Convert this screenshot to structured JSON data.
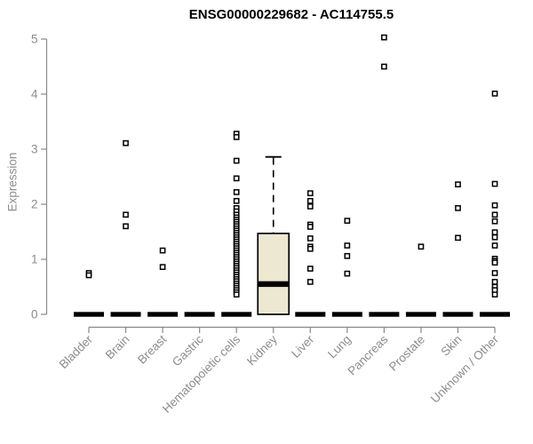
{
  "chart_data": {
    "type": "boxplot",
    "title": "ENSG00000229682 - AC114755.5",
    "ylabel": "Expression",
    "xlabel": "",
    "ylim": [
      0,
      5
    ],
    "yticks": [
      "0",
      "1",
      "2",
      "3",
      "4",
      "5"
    ],
    "grid": false,
    "legend": "none",
    "categories": [
      "Bladder",
      "Brain",
      "Breast",
      "Gastric",
      "Hematopoietic cells",
      "Kidney",
      "Liver",
      "Lung",
      "Pancreas",
      "Prostate",
      "Skin",
      "Unknown / Other"
    ],
    "boxes": [
      {
        "category": "Bladder",
        "q1": 0,
        "median": 0,
        "q3": 0,
        "whisker_low": 0,
        "whisker_high": 0,
        "outliers": [
          0.75,
          0.71
        ]
      },
      {
        "category": "Brain",
        "q1": 0,
        "median": 0,
        "q3": 0,
        "whisker_low": 0,
        "whisker_high": 0,
        "outliers": [
          3.11,
          1.81,
          1.6
        ]
      },
      {
        "category": "Breast",
        "q1": 0,
        "median": 0,
        "q3": 0,
        "whisker_low": 0,
        "whisker_high": 0,
        "outliers": [
          1.16,
          0.86
        ]
      },
      {
        "category": "Gastric",
        "q1": 0,
        "median": 0,
        "q3": 0,
        "whisker_low": 0,
        "whisker_high": 0,
        "outliers": []
      },
      {
        "category": "Hematopoietic cells",
        "q1": 0,
        "median": 0,
        "q3": 0,
        "whisker_low": 0,
        "whisker_high": 0,
        "outliers": [
          3.28,
          3.22,
          2.79,
          2.47,
          2.22,
          2.06,
          1.93,
          1.87,
          1.81,
          1.76,
          1.72,
          1.68,
          1.64,
          1.6,
          1.56,
          1.52,
          1.48,
          1.44,
          1.4,
          1.36,
          1.32,
          1.28,
          1.24,
          1.2,
          1.16,
          1.12,
          1.08,
          1.04,
          1.0,
          0.96,
          0.92,
          0.88,
          0.84,
          0.8,
          0.76,
          0.72,
          0.68,
          0.64,
          0.6,
          0.56,
          0.52,
          0.48,
          0.44,
          0.4,
          0.36
        ],
        "note": "dense outlier column"
      },
      {
        "category": "Kidney",
        "q1": 0,
        "median": 0.55,
        "q3": 1.47,
        "whisker_low": 0,
        "whisker_high": 2.86,
        "outliers": []
      },
      {
        "category": "Liver",
        "q1": 0,
        "median": 0,
        "q3": 0,
        "whisker_low": 0,
        "whisker_high": 0,
        "outliers": [
          2.2,
          2.06,
          1.96,
          1.63,
          1.59,
          1.38,
          1.23,
          1.19,
          0.83,
          0.59
        ]
      },
      {
        "category": "Lung",
        "q1": 0,
        "median": 0,
        "q3": 0,
        "whisker_low": 0,
        "whisker_high": 0,
        "outliers": [
          1.7,
          1.25,
          1.06,
          0.74
        ]
      },
      {
        "category": "Pancreas",
        "q1": 0,
        "median": 0,
        "q3": 0,
        "whisker_low": 0,
        "whisker_high": 0,
        "outliers": [
          5.03,
          4.5
        ]
      },
      {
        "category": "Prostate",
        "q1": 0,
        "median": 0,
        "q3": 0,
        "whisker_low": 0,
        "whisker_high": 0,
        "outliers": [
          1.23
        ]
      },
      {
        "category": "Skin",
        "q1": 0,
        "median": 0,
        "q3": 0,
        "whisker_low": 0,
        "whisker_high": 0,
        "outliers": [
          2.36,
          1.93,
          1.39
        ]
      },
      {
        "category": "Unknown / Other",
        "q1": 0,
        "median": 0,
        "q3": 0,
        "whisker_low": 0,
        "whisker_high": 0,
        "outliers": [
          4.01,
          2.37,
          1.98,
          1.81,
          1.69,
          1.49,
          1.4,
          1.25,
          1.01,
          0.97,
          0.94,
          0.75,
          0.59,
          0.5,
          0.44,
          0.36
        ]
      }
    ],
    "colors": {
      "box_fill": "#ede8d1",
      "box_stroke": "#000000",
      "median": "#000000",
      "axis": "#888888",
      "tick_label": "#8c8c8c",
      "title": "#000000",
      "outlier_fill": "#ffffff",
      "outlier_stroke": "#000000",
      "background": "#ffffff"
    }
  }
}
